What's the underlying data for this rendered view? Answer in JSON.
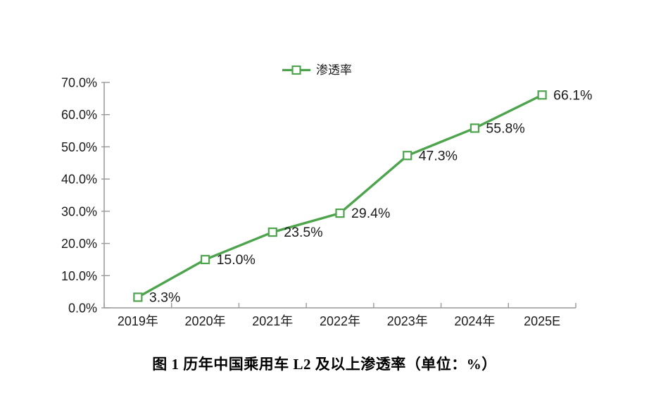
{
  "legend": {
    "label": "渗透率"
  },
  "caption": "图 1  历年中国乘用车 L2 及以上渗透率（单位：%）",
  "colors": {
    "line": "#4DA44D",
    "marker_fill": "#ffffff",
    "axis": "#999999",
    "text": "#1a1a1a"
  },
  "chart_data": {
    "type": "line",
    "title": "",
    "caption": "图 1  历年中国乘用车 L2 及以上渗透率（单位：%）",
    "categories": [
      "2019年",
      "2020年",
      "2021年",
      "2022年",
      "2023年",
      "2024年",
      "2025E"
    ],
    "series": [
      {
        "name": "渗透率",
        "values": [
          3.3,
          15.0,
          23.5,
          29.4,
          47.3,
          55.8,
          66.1
        ]
      }
    ],
    "data_labels": [
      "3.3%",
      "15.0%",
      "23.5%",
      "29.4%",
      "47.3%",
      "55.8%",
      "66.1%"
    ],
    "y_tick_labels": [
      "0.0%",
      "10.0%",
      "20.0%",
      "30.0%",
      "40.0%",
      "50.0%",
      "60.0%",
      "70.0%"
    ],
    "ylim": [
      0,
      70
    ],
    "y_tick_step": 10,
    "xlabel": "",
    "ylabel": "",
    "grid": false,
    "legend_position": "top",
    "marker": "open-square"
  }
}
